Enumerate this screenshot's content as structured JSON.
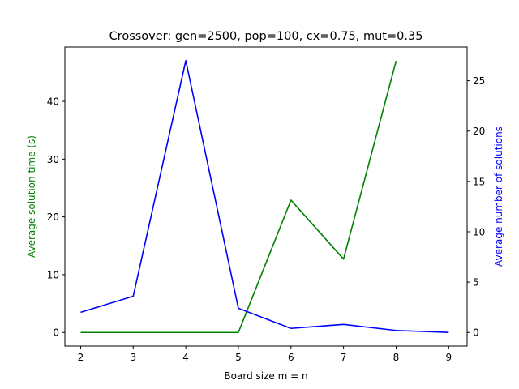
{
  "chart_data": {
    "type": "line",
    "title": "Crossover: gen=2500, pop=100, cx=0.75, mut=0.35",
    "xlabel": "Board size m = n",
    "x": [
      2,
      3,
      4,
      5,
      6,
      7,
      8,
      9
    ],
    "xlim": [
      1.7,
      9.35
    ],
    "x_ticks": [
      "2",
      "3",
      "4",
      "5",
      "6",
      "7",
      "8",
      "9"
    ],
    "grid": false,
    "legend": "none",
    "axes": {
      "left": {
        "label": "Average solution time (s)",
        "color": "#008000",
        "ylim": [
          -2.35,
          49.4
        ],
        "ticks": [
          "0",
          "10",
          "20",
          "30",
          "40"
        ]
      },
      "right": {
        "label": "Average number of solutions",
        "color": "#0000ff",
        "ylim": [
          -1.35,
          28.35
        ],
        "ticks": [
          "0",
          "5",
          "10",
          "15",
          "20",
          "25"
        ]
      }
    },
    "series": [
      {
        "axis": "left",
        "color": "#008000",
        "x": [
          2,
          3,
          4,
          5,
          6,
          7,
          8
        ],
        "values": [
          0,
          0,
          0,
          0,
          22.9,
          12.7,
          47.0
        ]
      },
      {
        "axis": "right",
        "color": "#0000ff",
        "x": [
          2,
          3,
          4,
          5,
          6,
          7,
          8,
          9
        ],
        "values": [
          2.0,
          3.6,
          27.0,
          2.4,
          0.4,
          0.8,
          0.2,
          0.0
        ]
      }
    ]
  }
}
